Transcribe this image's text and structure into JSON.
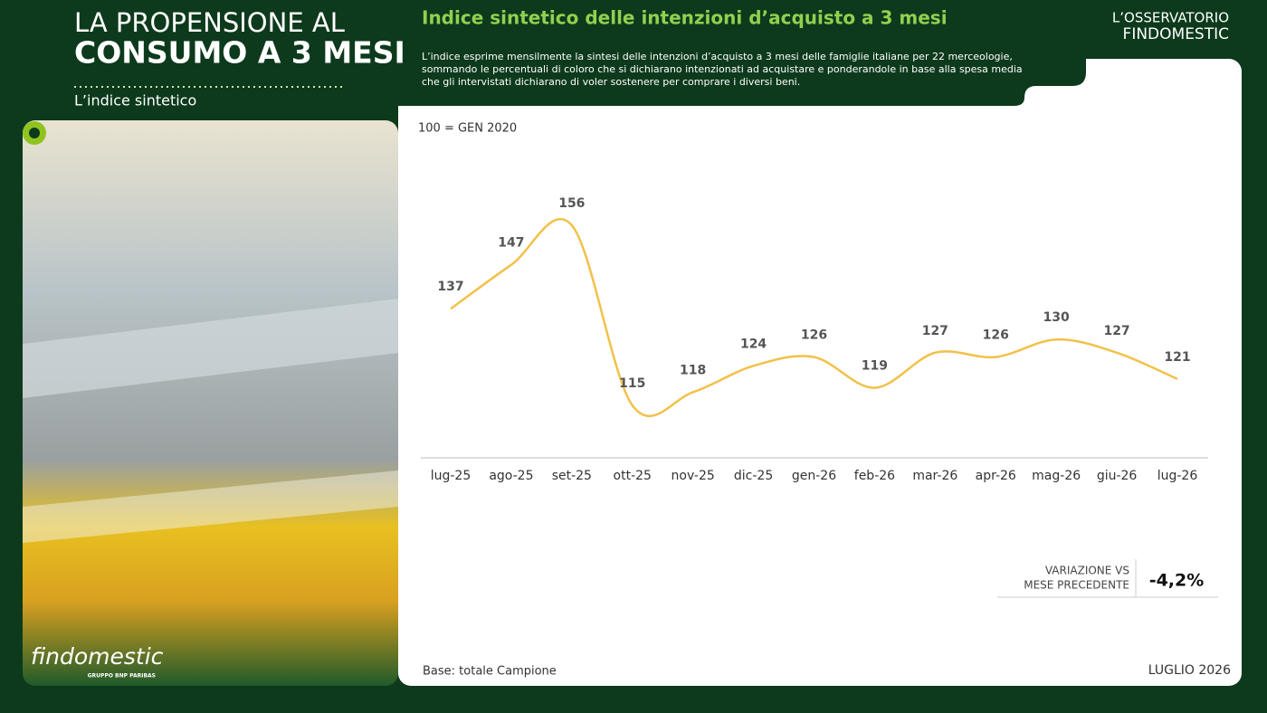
{
  "header": {
    "title_line1": "LA PROPENSIONE AL",
    "title_line2": "CONSUMO A 3 MESI",
    "subtitle": "L’indice sintetico"
  },
  "logo": {
    "line1": "L’OSSERVATORIO",
    "line2": "FINDOMESTIC"
  },
  "brand": {
    "name": "findomestic",
    "group": "GRUPPO BNP PARIBAS"
  },
  "description": [
    "L’indice esprime mensilmente la sintesi delle intenzioni d’acquisto a 3 mesi delle famiglie italiane per 22 merceologie,",
    "sommando le percentuali di coloro che si dichiarano intenzionati ad acquistare e ponderandole in base alla spesa media",
    "che gli intervistati dichiarano di voler sostenere per comprare i diversi beni."
  ],
  "variation": {
    "label_line1": "VARIAZIONE VS",
    "label_line2": "MESE PRECEDENTE",
    "value": "-4,2%"
  },
  "footer": {
    "base": "Base: totale Campione",
    "date": "LUGLIO 2026"
  },
  "chart_data": {
    "type": "line",
    "title": "Indice sintetico delle intenzioni d’acquisto a 3 mesi",
    "annotation": "100 = GEN 2020",
    "categories": [
      "lug-25",
      "ago-25",
      "set-25",
      "ott-25",
      "nov-25",
      "dic-25",
      "gen-26",
      "feb-26",
      "mar-26",
      "apr-26",
      "mag-26",
      "giu-26",
      "lug-26"
    ],
    "values": [
      137,
      147,
      156,
      115,
      118,
      124,
      126,
      119,
      127,
      126,
      130,
      127,
      121
    ],
    "color": "#f2c14a",
    "smooth": true
  }
}
